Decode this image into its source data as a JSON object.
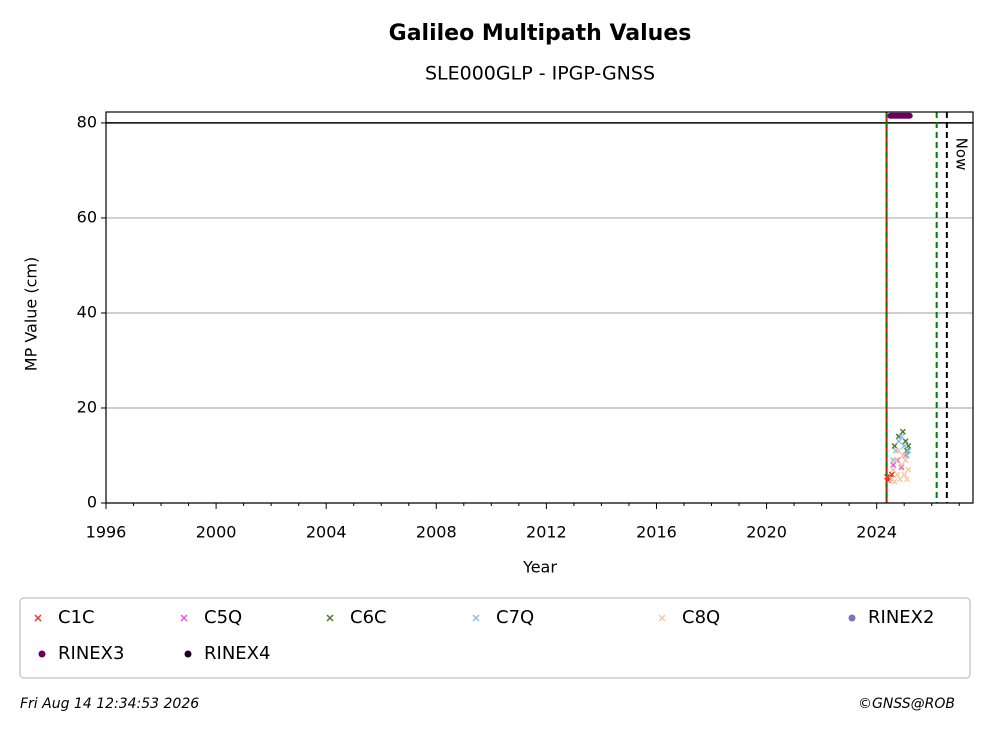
{
  "chart_data": {
    "type": "scatter",
    "title": "Galileo Multipath Values",
    "subtitle": "SLE000GLP - IPGP-GNSS",
    "x_label": "Year",
    "y_label": "MP Value (cm)",
    "xlim": [
      1996,
      2027.5
    ],
    "ylim": [
      0,
      82.3
    ],
    "xticks": [
      1996,
      2000,
      2004,
      2008,
      2012,
      2016,
      2020,
      2024
    ],
    "xminorticks": [
      1997,
      1998,
      1999,
      2001,
      2002,
      2003,
      2005,
      2006,
      2007,
      2009,
      2010,
      2011,
      2013,
      2014,
      2015,
      2017,
      2018,
      2019,
      2021,
      2022,
      2023,
      2025,
      2026,
      2027
    ],
    "yticks": [
      0,
      20,
      40,
      60,
      80
    ],
    "grid": true,
    "hlines": [
      {
        "y": 80,
        "color": "#000000",
        "style": "solid"
      }
    ],
    "vlines": [
      {
        "x": 2024.36,
        "color": "#ff0000",
        "style": "solid"
      },
      {
        "x": 2024.36,
        "color": "#008000",
        "style": "dashed"
      },
      {
        "x": 2026.18,
        "color": "#008000",
        "style": "dashed"
      },
      {
        "x": 2026.55,
        "color": "#000000",
        "style": "dashed",
        "label": "Now"
      }
    ],
    "series": [
      {
        "name": "C1C",
        "color": "#e8392b",
        "marker": "x",
        "x": [
          2024.38,
          2024.42,
          2024.47,
          2024.55
        ],
        "values": [
          5.5,
          4.8,
          5.2,
          6
        ]
      },
      {
        "name": "C5Q",
        "color": "#f050f0",
        "marker": "x",
        "x": [
          2024.6,
          2024.75,
          2024.9,
          2025.05
        ],
        "values": [
          8,
          9,
          7.5,
          10
        ]
      },
      {
        "name": "C6C",
        "color": "#4c7a2a",
        "marker": "x",
        "x": [
          2024.65,
          2024.8,
          2024.95,
          2025.05,
          2025.1,
          2025.15
        ],
        "values": [
          12,
          14,
          15,
          13,
          11,
          12
        ]
      },
      {
        "name": "C7Q",
        "color": "#8fbfe6",
        "marker": "x",
        "x": [
          2024.6,
          2024.7,
          2024.8,
          2024.9,
          2025.0,
          2025.1,
          2025.15
        ],
        "values": [
          9,
          11,
          13,
          14,
          12,
          10,
          11
        ]
      },
      {
        "name": "C8Q",
        "color": "#f8c9a0",
        "marker": "x",
        "x": [
          2024.55,
          2024.6,
          2024.65,
          2024.7,
          2024.75,
          2024.8,
          2024.85,
          2024.9,
          2024.95,
          2025.0,
          2025.05,
          2025.1,
          2025.15
        ],
        "values": [
          5,
          7,
          4.5,
          9,
          6,
          11,
          5,
          8,
          10,
          6,
          9,
          5,
          7
        ]
      },
      {
        "name": "RINEX2",
        "color": "#8070c0",
        "marker": "dot",
        "x": [],
        "values": []
      },
      {
        "name": "RINEX3",
        "color": "#6a0060",
        "marker": "dot",
        "x": [
          2024.5,
          2024.55,
          2024.6,
          2024.65,
          2024.7,
          2024.75,
          2024.8,
          2024.85,
          2024.9,
          2024.95,
          2025.0,
          2025.05,
          2025.1,
          2025.15,
          2025.2
        ],
        "values": [
          81.5,
          81.5,
          81.5,
          81.5,
          81.5,
          81.5,
          81.5,
          81.5,
          81.5,
          81.5,
          81.5,
          81.5,
          81.5,
          81.5,
          81.5
        ]
      },
      {
        "name": "RINEX4",
        "color": "#1a0020",
        "marker": "dot",
        "x": [],
        "values": []
      }
    ],
    "footer_left": "Fri Aug 14 12:34:53 2026",
    "footer_right": "©GNSS@ROB"
  }
}
